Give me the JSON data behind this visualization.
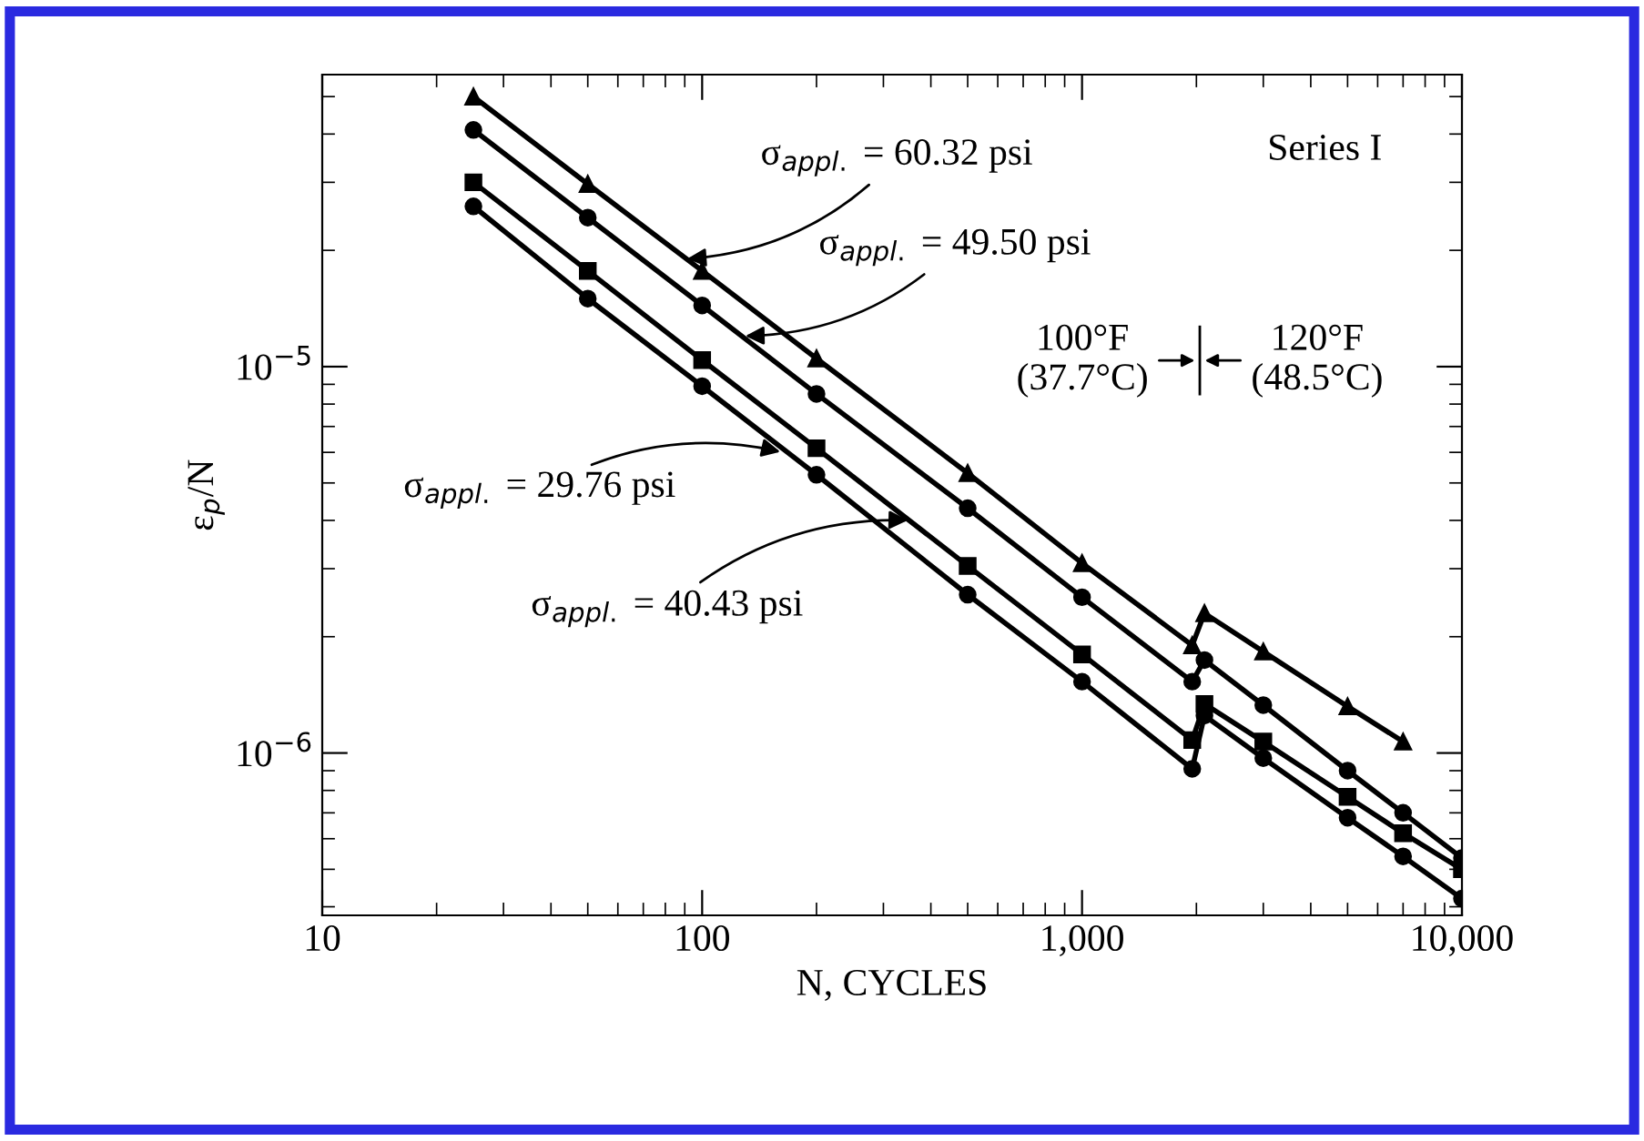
{
  "chart_data": {
    "type": "line",
    "xlabel": "N, CYCLES",
    "ylabel": "ε$_{p}$/N",
    "log": "xy",
    "xlim": [
      10,
      10000
    ],
    "ylim": [
      3.8e-07,
      5.7e-05
    ],
    "xticks": [
      10,
      100,
      {
        "value": 1000,
        "label": "1,000"
      },
      {
        "value": 10000,
        "label": "10,000"
      }
    ],
    "yticks": [
      {
        "value": 1e-06,
        "label": "10$^{−6}$"
      },
      {
        "value": 1e-05,
        "label": "10$^{−5}$"
      }
    ],
    "grid": false,
    "legend": false,
    "line_style": "solid",
    "x": [
      25,
      50,
      100,
      200,
      500,
      1000,
      1950,
      2100,
      3000,
      5000,
      7000,
      10000
    ],
    "series": [
      {
        "color": "#000000",
        "marker": "triangle",
        "values": [
          5e-05,
          2.97e-05,
          1.77e-05,
          1.05e-05,
          5.3e-06,
          3.1e-06,
          1.9e-06,
          2.3e-06,
          1.83e-06,
          1.32e-06,
          1.07e-06,
          null
        ]
      },
      {
        "color": "#000000",
        "marker": "circle",
        "values": [
          4.1e-05,
          2.43e-05,
          1.44e-05,
          8.5e-06,
          4.3e-06,
          2.53e-06,
          1.53e-06,
          1.74e-06,
          1.33e-06,
          9e-07,
          7e-07,
          5.35e-07
        ]
      },
      {
        "color": "#000000",
        "marker": "square",
        "values": [
          3e-05,
          1.77e-05,
          1.04e-05,
          6.15e-06,
          3.05e-06,
          1.8e-06,
          1.08e-06,
          1.34e-06,
          1.07e-06,
          7.7e-07,
          6.2e-07,
          5e-07
        ]
      },
      {
        "color": "#000000",
        "marker": "circle",
        "values": [
          2.6e-05,
          1.5e-05,
          8.9e-06,
          5.25e-06,
          2.57e-06,
          1.53e-06,
          9.1e-07,
          1.25e-06,
          9.7e-07,
          6.8e-07,
          5.4e-07,
          4.2e-07
        ]
      }
    ],
    "annotations": [
      {
        "text": "σ$_{appl.}$ = 60.32 psi",
        "x": 90,
        "y": 1.9e-05
      },
      {
        "text": "σ$_{appl.}$ = 49.50 psi",
        "x": 128,
        "y": 1.2e-05
      },
      {
        "text": "σ$_{appl.}$ = 29.76 psi",
        "x": 163,
        "y": 6e-06
      },
      {
        "text": "σ$_{appl.}$ = 40.43 psi",
        "x": 353,
        "y": 4e-06
      },
      "Series I",
      "100°F\n(37.7°C)",
      "120°F\n(48.5°C)"
    ]
  }
}
